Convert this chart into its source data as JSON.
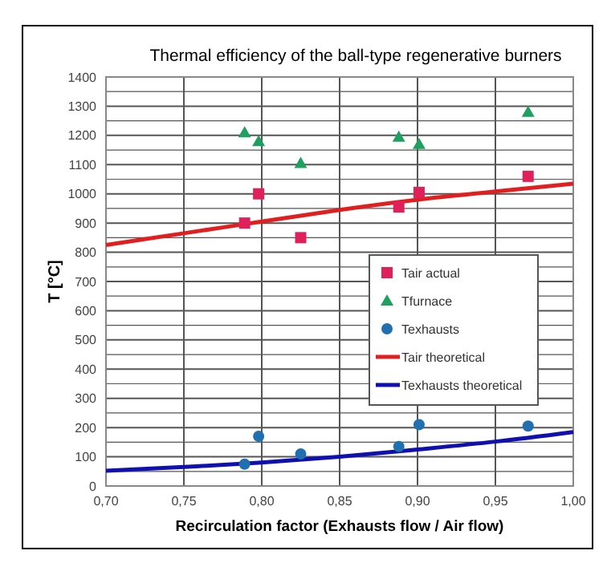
{
  "chart_data": {
    "type": "scatter",
    "title": "Thermal efficiency of the ball-type regenerative burners",
    "xlabel": "Recirculation factor (Exhausts flow / Air flow)",
    "ylabel": "T [°C]",
    "xlim": [
      0.7,
      1.0
    ],
    "xticks": [
      {
        "value": 0.7,
        "label": "0,70"
      },
      {
        "value": 0.75,
        "label": "0,75"
      },
      {
        "value": 0.8,
        "label": "0,80"
      },
      {
        "value": 0.85,
        "label": "0,85"
      },
      {
        "value": 0.9,
        "label": "0,90"
      },
      {
        "value": 0.95,
        "label": "0,95"
      },
      {
        "value": 1.0,
        "label": "1,00"
      }
    ],
    "ylim": [
      0,
      1400
    ],
    "yticks": [
      0,
      {
        "value": 50,
        "label": null
      },
      100,
      {
        "value": 150,
        "label": null
      },
      200,
      {
        "value": 250,
        "label": null
      },
      300,
      {
        "value": 350,
        "label": null
      },
      400,
      {
        "value": 450,
        "label": null
      },
      500,
      {
        "value": 550,
        "label": null
      },
      600,
      {
        "value": 650,
        "label": null
      },
      700,
      {
        "value": 750,
        "label": null
      },
      800,
      {
        "value": 850,
        "label": null
      },
      900,
      {
        "value": 950,
        "label": null
      },
      1000,
      {
        "value": 1050,
        "label": null
      },
      1100,
      {
        "value": 1150,
        "label": null
      },
      1200,
      {
        "value": 1250,
        "label": null
      },
      1300,
      {
        "value": 1350,
        "label": null
      },
      1400
    ],
    "grid": true,
    "legend": "right",
    "series": [
      {
        "name": "Tair actual",
        "marker": "square",
        "color": "#e0205a",
        "x": [
          0.789,
          0.798,
          0.825,
          0.888,
          0.901,
          0.971
        ],
        "values": [
          900,
          1000,
          850,
          955,
          1005,
          1060
        ]
      },
      {
        "name": "Tfurnace",
        "marker": "triangle",
        "color": "#20a060",
        "x": [
          0.789,
          0.798,
          0.825,
          0.888,
          0.901,
          0.971
        ],
        "values": [
          1210,
          1180,
          1105,
          1195,
          1170,
          1280
        ]
      },
      {
        "name": "Texhausts",
        "marker": "circle",
        "color": "#2070b0",
        "x": [
          0.789,
          0.798,
          0.825,
          0.888,
          0.901,
          0.971
        ],
        "values": [
          75,
          170,
          110,
          135,
          210,
          205
        ]
      },
      {
        "name": "Tair theoretical",
        "type": "line",
        "color": "#e02020",
        "x": [
          0.7,
          0.75,
          0.8,
          0.85,
          0.9,
          0.95,
          1.0
        ],
        "values": [
          825,
          865,
          905,
          945,
          980,
          1008,
          1035
        ]
      },
      {
        "name": "Texhausts theoretical",
        "type": "line",
        "color": "#1010b0",
        "x": [
          0.7,
          0.75,
          0.8,
          0.85,
          0.9,
          0.95,
          1.0
        ],
        "values": [
          52,
          65,
          80,
          100,
          125,
          152,
          185
        ]
      }
    ]
  }
}
